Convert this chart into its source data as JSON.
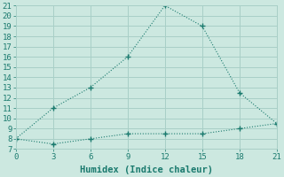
{
  "xlabel": "Humidex (Indice chaleur)",
  "line1_x": [
    0,
    3,
    6,
    9,
    12,
    15,
    18,
    21
  ],
  "line1_y": [
    8,
    11,
    13,
    16,
    21,
    19,
    12.5,
    9.5
  ],
  "line2_x": [
    0,
    3,
    6,
    9,
    12,
    15,
    18,
    21
  ],
  "line2_y": [
    8,
    7.5,
    8,
    8.5,
    8.5,
    8.5,
    9,
    9.5
  ],
  "line_color": "#1a7a6e",
  "bg_color": "#cce8e0",
  "grid_color": "#a8cfc7",
  "xlim": [
    0,
    21
  ],
  "ylim": [
    7,
    21
  ],
  "xticks": [
    0,
    3,
    6,
    9,
    12,
    15,
    18,
    21
  ],
  "yticks": [
    7,
    8,
    9,
    10,
    11,
    12,
    13,
    14,
    15,
    16,
    17,
    18,
    19,
    20,
    21
  ],
  "xlabel_fontsize": 7.5,
  "tick_fontsize": 6.5
}
